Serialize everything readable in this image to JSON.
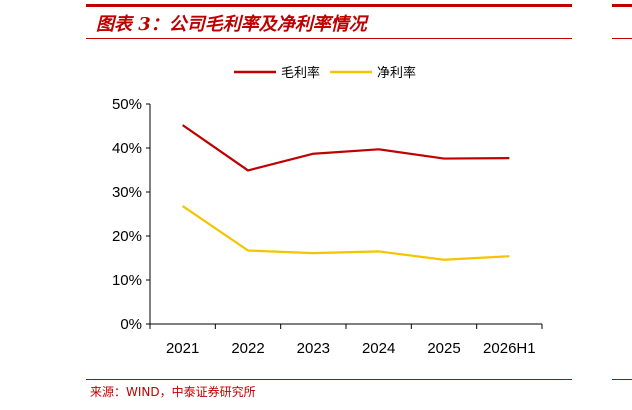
{
  "title": "图表 3：公司毛利率及净利率情况",
  "source": "来源：WIND，中泰证券研究所",
  "colors": {
    "accent": "#c00000",
    "gross": "#c00000",
    "net": "#f5c400",
    "axis": "#000000"
  },
  "chart_data": {
    "type": "line",
    "title": "图表 3：公司毛利率及净利率情况",
    "categories": [
      "2021",
      "2022",
      "2023",
      "2024",
      "2025",
      "2026H1"
    ],
    "yticks": [
      "0%",
      "10%",
      "20%",
      "30%",
      "40%",
      "50%"
    ],
    "ylim": [
      0,
      50
    ],
    "grid": false,
    "legend_position": "top-center",
    "series": [
      {
        "name": "毛利率",
        "color": "#c00000",
        "values": [
          45.2,
          34.9,
          38.7,
          39.7,
          37.6,
          37.7
        ]
      },
      {
        "name": "净利率",
        "color": "#f5c400",
        "values": [
          26.8,
          16.7,
          16.1,
          16.5,
          14.6,
          15.4
        ]
      }
    ]
  }
}
